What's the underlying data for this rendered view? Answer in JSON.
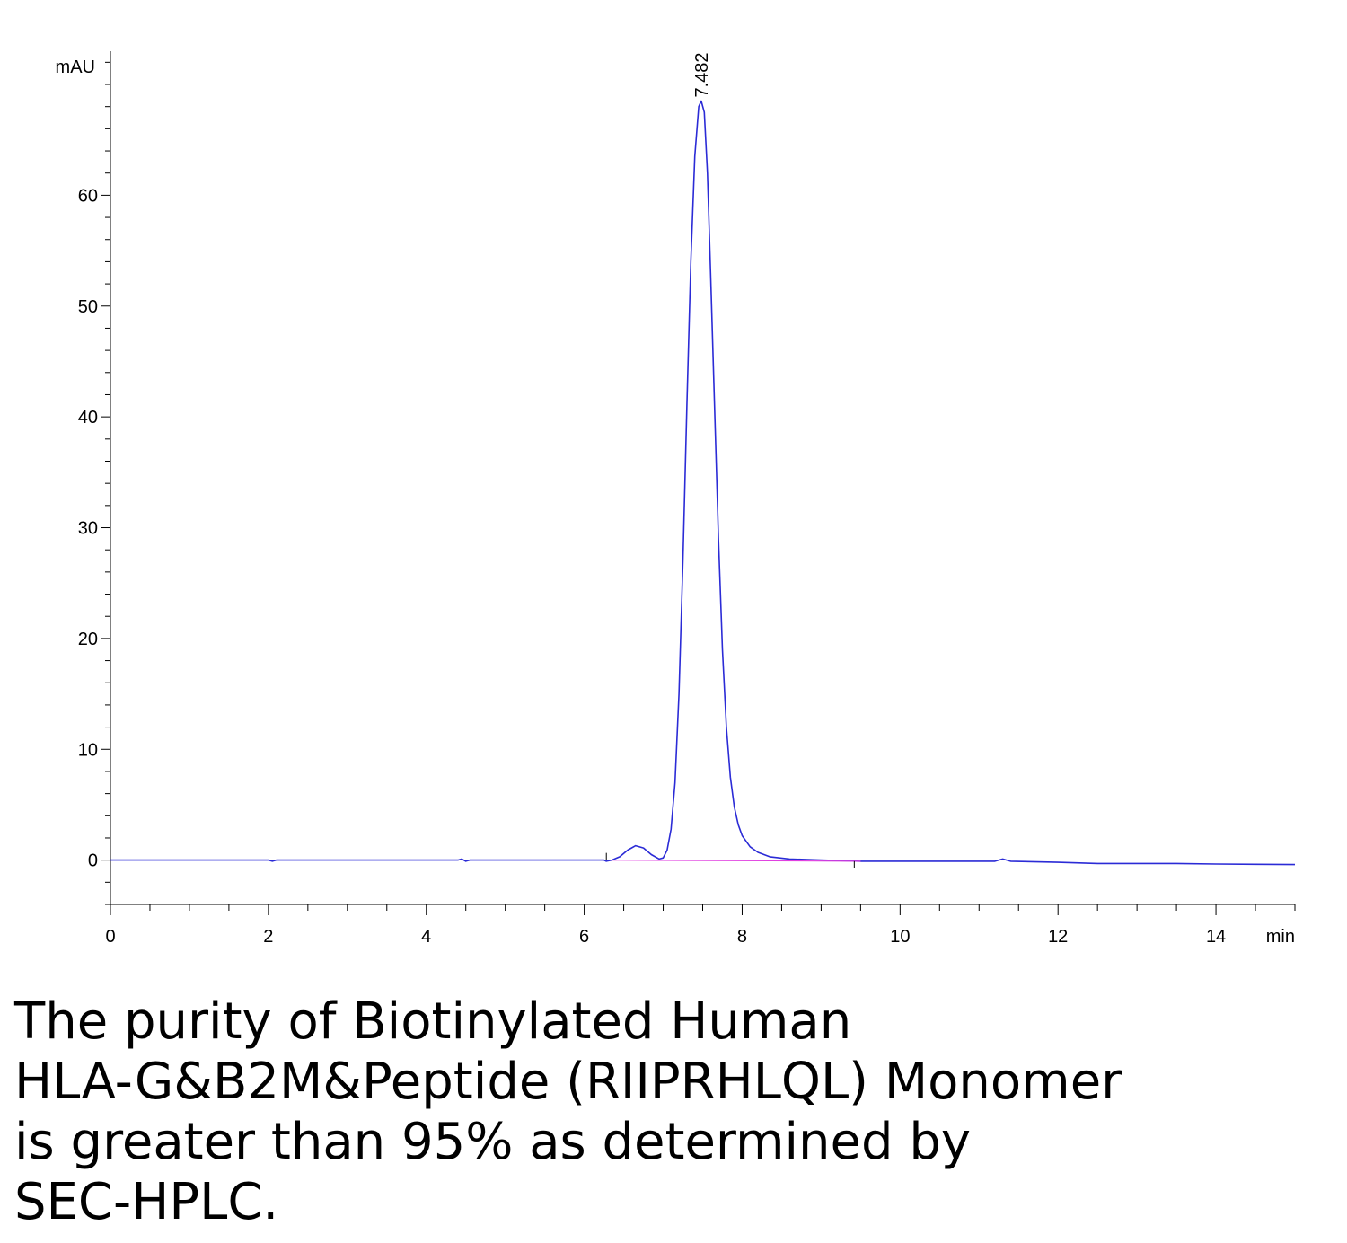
{
  "chart_data": {
    "type": "line",
    "ylabel": "mAU",
    "xlabel": "min",
    "xlim": [
      0,
      15
    ],
    "ylim": [
      -4,
      73
    ],
    "x_ticks": [
      0,
      2,
      4,
      6,
      8,
      10,
      12,
      14
    ],
    "y_ticks": [
      0,
      10,
      20,
      30,
      40,
      50,
      60
    ],
    "peak_annotation": {
      "label": "7.482",
      "x": 7.482,
      "y": 68.5
    },
    "series": [
      {
        "color": "#2b2bd6",
        "points": [
          [
            0,
            0.0
          ],
          [
            2.0,
            0.0
          ],
          [
            2.05,
            -0.1
          ],
          [
            2.1,
            0.0
          ],
          [
            4.4,
            0.0
          ],
          [
            4.45,
            0.1
          ],
          [
            4.5,
            -0.1
          ],
          [
            4.55,
            0.0
          ],
          [
            6.25,
            0.0
          ],
          [
            6.28,
            -0.1
          ],
          [
            6.35,
            0.0
          ],
          [
            6.45,
            0.3
          ],
          [
            6.55,
            0.9
          ],
          [
            6.65,
            1.3
          ],
          [
            6.75,
            1.1
          ],
          [
            6.85,
            0.5
          ],
          [
            6.95,
            0.1
          ],
          [
            7.0,
            0.2
          ],
          [
            7.05,
            0.9
          ],
          [
            7.1,
            2.8
          ],
          [
            7.15,
            7.0
          ],
          [
            7.2,
            15.0
          ],
          [
            7.25,
            27.0
          ],
          [
            7.3,
            41.0
          ],
          [
            7.35,
            54.0
          ],
          [
            7.4,
            63.5
          ],
          [
            7.45,
            68.0
          ],
          [
            7.482,
            68.5
          ],
          [
            7.52,
            67.5
          ],
          [
            7.56,
            62.0
          ],
          [
            7.6,
            53.0
          ],
          [
            7.65,
            41.0
          ],
          [
            7.7,
            29.0
          ],
          [
            7.75,
            19.0
          ],
          [
            7.8,
            12.0
          ],
          [
            7.85,
            7.5
          ],
          [
            7.9,
            4.8
          ],
          [
            7.95,
            3.2
          ],
          [
            8.0,
            2.2
          ],
          [
            8.1,
            1.2
          ],
          [
            8.2,
            0.7
          ],
          [
            8.35,
            0.3
          ],
          [
            8.6,
            0.1
          ],
          [
            9.0,
            0.0
          ],
          [
            9.5,
            -0.1
          ],
          [
            10.0,
            -0.1
          ],
          [
            11.0,
            -0.1
          ],
          [
            11.2,
            -0.1
          ],
          [
            11.3,
            0.1
          ],
          [
            11.4,
            -0.1
          ],
          [
            12.0,
            -0.2
          ],
          [
            12.5,
            -0.3
          ],
          [
            13.0,
            -0.3
          ],
          [
            13.5,
            -0.3
          ],
          [
            14.0,
            -0.35
          ],
          [
            15.0,
            -0.4
          ]
        ]
      },
      {
        "color": "#e040e0",
        "points": [
          [
            6.35,
            0.0
          ],
          [
            9.5,
            -0.1
          ]
        ]
      }
    ]
  },
  "caption": {
    "line1": "The purity of Biotinylated Human",
    "line2": "HLA-G&B2M&Peptide (RIIPRHLQL) Monomer",
    "line3": "is greater than 95% as determined by",
    "line4": "SEC-HPLC."
  }
}
